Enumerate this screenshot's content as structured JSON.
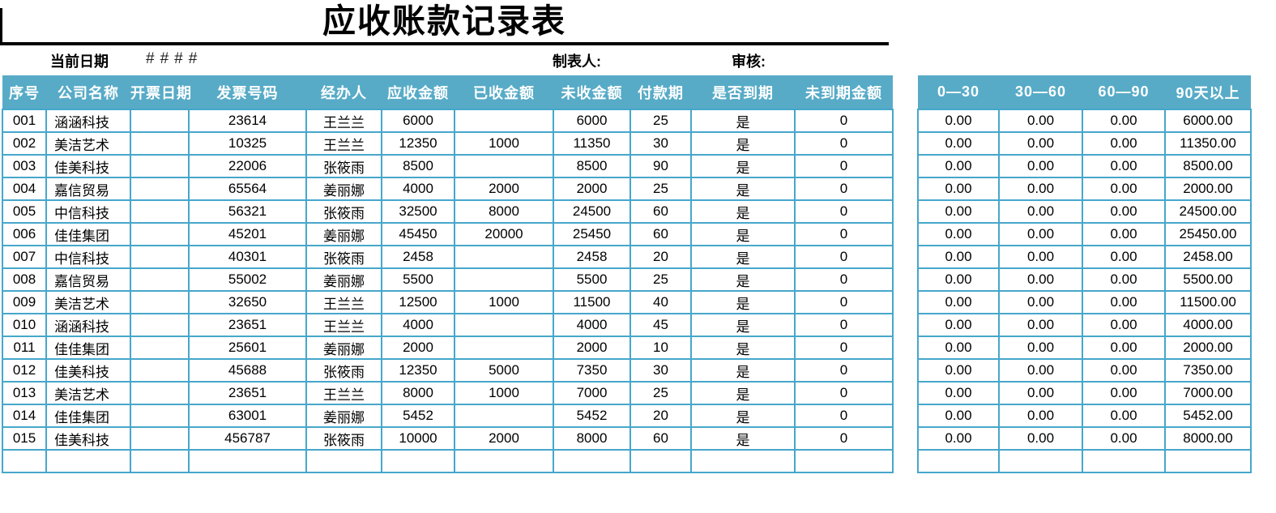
{
  "title": "应收账款记录表",
  "info_bar": {
    "current_date_label": "当前日期",
    "current_date_value": "####",
    "preparer_label": "制表人:",
    "reviewer_label": "审核:"
  },
  "main_table": {
    "headers": [
      "序号",
      "公司名称",
      "开票日期",
      "发票号码",
      "经办人",
      "应收金额",
      "已收金额",
      "未收金额",
      "付款期",
      "是否到期",
      "未到期金额"
    ],
    "rows": [
      [
        "001",
        "涵涵科技",
        "",
        "23614",
        "王兰兰",
        "6000",
        "",
        "6000",
        "25",
        "是",
        "0"
      ],
      [
        "002",
        "美洁艺术",
        "",
        "10325",
        "王兰兰",
        "12350",
        "1000",
        "11350",
        "30",
        "是",
        "0"
      ],
      [
        "003",
        "佳美科技",
        "",
        "22006",
        "张筱雨",
        "8500",
        "",
        "8500",
        "90",
        "是",
        "0"
      ],
      [
        "004",
        "嘉信贸易",
        "",
        "65564",
        "姜丽娜",
        "4000",
        "2000",
        "2000",
        "25",
        "是",
        "0"
      ],
      [
        "005",
        "中信科技",
        "",
        "56321",
        "张筱雨",
        "32500",
        "8000",
        "24500",
        "60",
        "是",
        "0"
      ],
      [
        "006",
        "佳佳集团",
        "",
        "45201",
        "姜丽娜",
        "45450",
        "20000",
        "25450",
        "60",
        "是",
        "0"
      ],
      [
        "007",
        "中信科技",
        "",
        "40301",
        "张筱雨",
        "2458",
        "",
        "2458",
        "20",
        "是",
        "0"
      ],
      [
        "008",
        "嘉信贸易",
        "",
        "55002",
        "姜丽娜",
        "5500",
        "",
        "5500",
        "25",
        "是",
        "0"
      ],
      [
        "009",
        "美洁艺术",
        "",
        "32650",
        "王兰兰",
        "12500",
        "1000",
        "11500",
        "40",
        "是",
        "0"
      ],
      [
        "010",
        "涵涵科技",
        "",
        "23651",
        "王兰兰",
        "4000",
        "",
        "4000",
        "45",
        "是",
        "0"
      ],
      [
        "011",
        "佳佳集团",
        "",
        "25601",
        "姜丽娜",
        "2000",
        "",
        "2000",
        "10",
        "是",
        "0"
      ],
      [
        "012",
        "佳美科技",
        "",
        "45688",
        "张筱雨",
        "12350",
        "5000",
        "7350",
        "30",
        "是",
        "0"
      ],
      [
        "013",
        "美洁艺术",
        "",
        "23651",
        "王兰兰",
        "8000",
        "1000",
        "7000",
        "25",
        "是",
        "0"
      ],
      [
        "014",
        "佳佳集团",
        "",
        "63001",
        "姜丽娜",
        "5452",
        "",
        "5452",
        "20",
        "是",
        "0"
      ],
      [
        "015",
        "佳美科技",
        "",
        "456787",
        "张筱雨",
        "10000",
        "2000",
        "8000",
        "60",
        "是",
        "0"
      ],
      [
        "",
        "",
        "",
        "",
        "",
        "",
        "",
        "",
        "",
        "",
        ""
      ]
    ]
  },
  "aging_table": {
    "headers": [
      "0—30",
      "30—60",
      "60—90",
      "90天以上"
    ],
    "rows": [
      [
        "0.00",
        "0.00",
        "0.00",
        "6000.00"
      ],
      [
        "0.00",
        "0.00",
        "0.00",
        "11350.00"
      ],
      [
        "0.00",
        "0.00",
        "0.00",
        "8500.00"
      ],
      [
        "0.00",
        "0.00",
        "0.00",
        "2000.00"
      ],
      [
        "0.00",
        "0.00",
        "0.00",
        "24500.00"
      ],
      [
        "0.00",
        "0.00",
        "0.00",
        "25450.00"
      ],
      [
        "0.00",
        "0.00",
        "0.00",
        "2458.00"
      ],
      [
        "0.00",
        "0.00",
        "0.00",
        "5500.00"
      ],
      [
        "0.00",
        "0.00",
        "0.00",
        "11500.00"
      ],
      [
        "0.00",
        "0.00",
        "0.00",
        "4000.00"
      ],
      [
        "0.00",
        "0.00",
        "0.00",
        "2000.00"
      ],
      [
        "0.00",
        "0.00",
        "0.00",
        "7350.00"
      ],
      [
        "0.00",
        "0.00",
        "0.00",
        "7000.00"
      ],
      [
        "0.00",
        "0.00",
        "0.00",
        "5452.00"
      ],
      [
        "0.00",
        "0.00",
        "0.00",
        "8000.00"
      ],
      [
        "",
        "",
        "",
        ""
      ]
    ]
  },
  "colors": {
    "header_bg": "#57abc7",
    "header_text": "#ffffff",
    "cell_border": "#46a7cb",
    "title_text": "#000000"
  }
}
